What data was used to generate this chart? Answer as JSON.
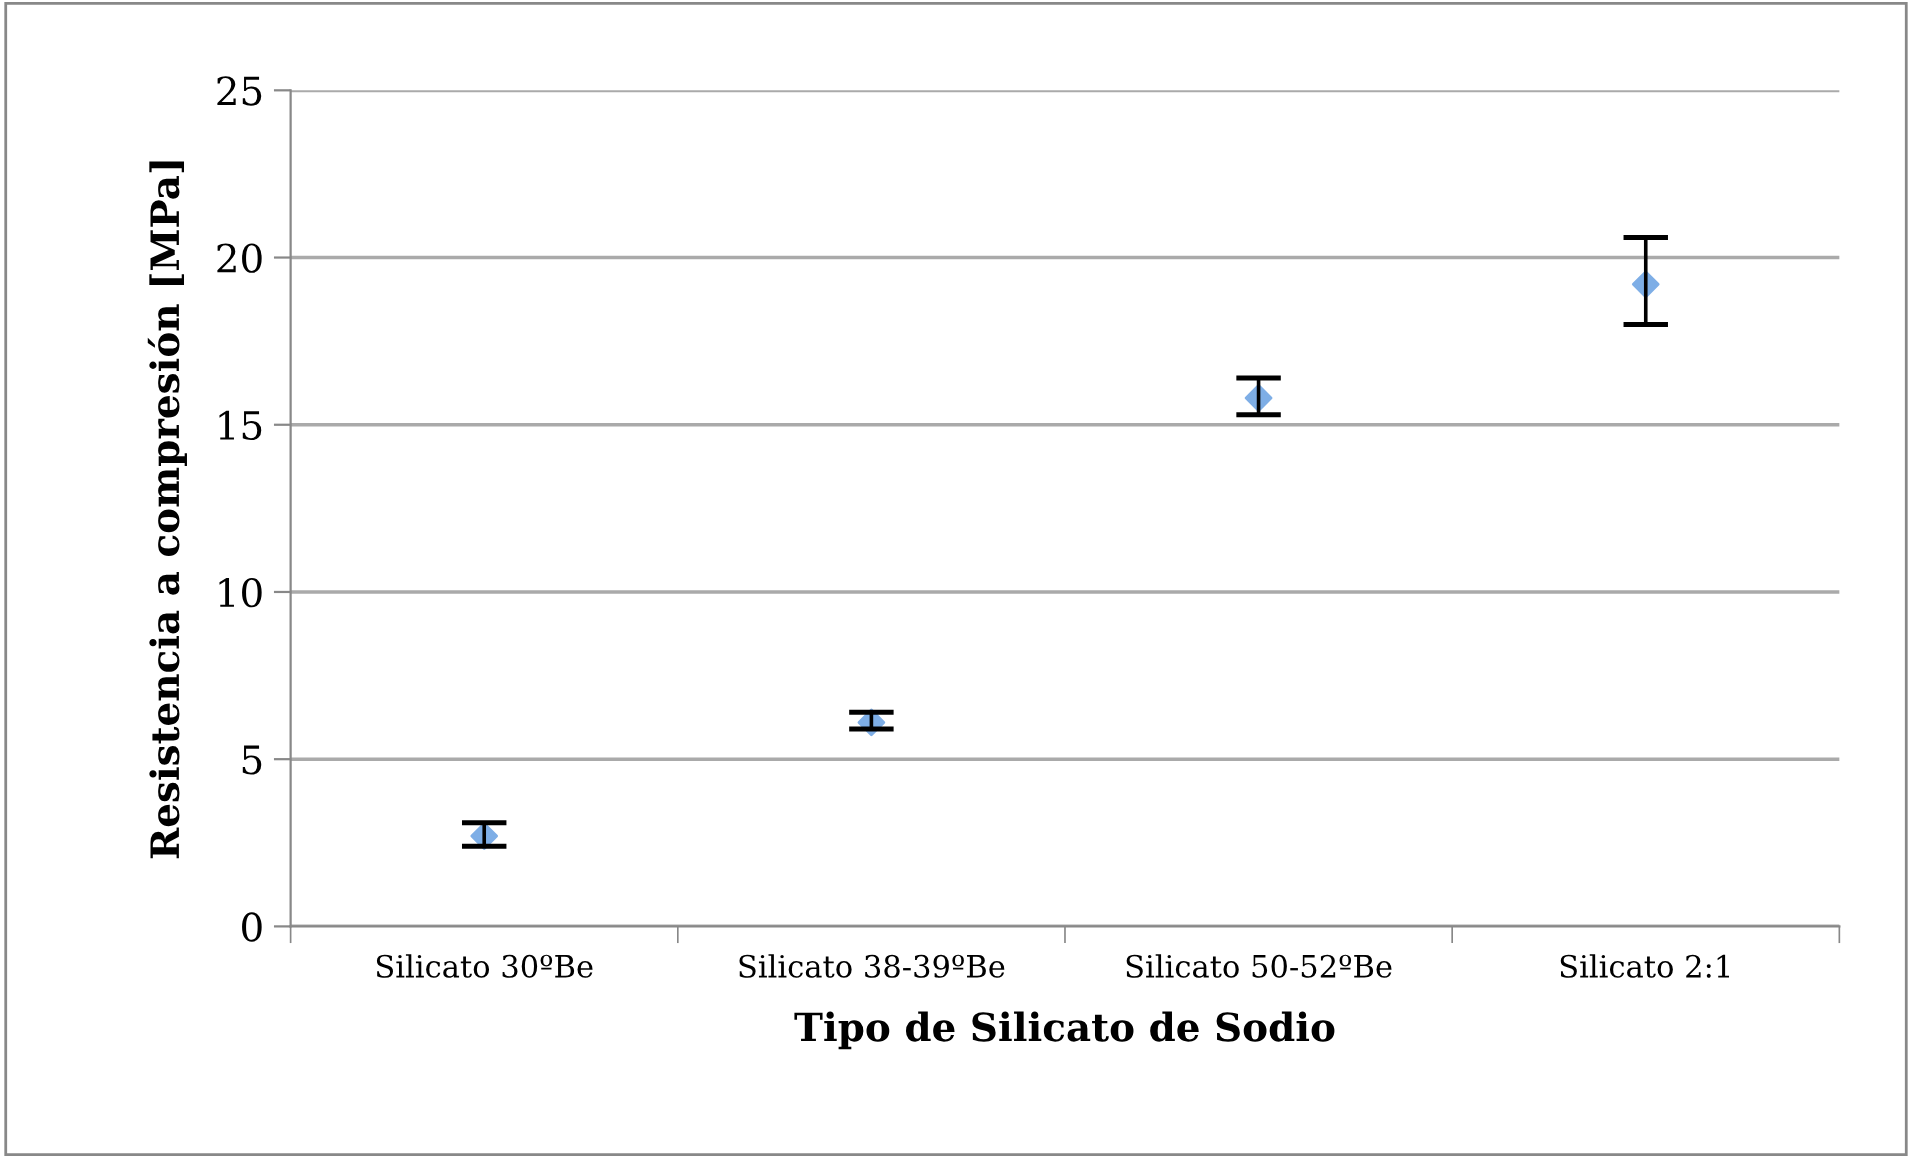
{
  "chart_data": {
    "type": "scatter",
    "xlabel": "Tipo de Silicato de Sodio",
    "ylabel": "Resistencia a compresión [MPa]",
    "categories": [
      "Silicato 30ºBe",
      "Silicato 38-39ºBe",
      "Silicato 50-52ºBe",
      "Silicato 2:1"
    ],
    "values": [
      2.7,
      6.1,
      15.8,
      19.2
    ],
    "errors": [
      [
        2.4,
        3.1
      ],
      [
        5.9,
        6.4
      ],
      [
        15.3,
        16.4
      ],
      [
        18.0,
        20.6
      ]
    ],
    "color": "#7eaee6",
    "marker": "diamond",
    "ylim": [
      0,
      25
    ],
    "yticks": [
      0,
      5,
      10,
      15,
      20,
      25
    ],
    "grid": "y",
    "legend": false
  }
}
